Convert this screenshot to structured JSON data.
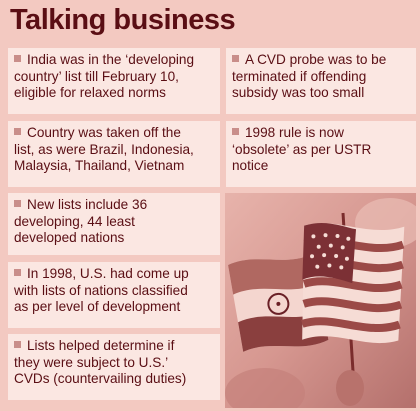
{
  "title": "Talking business",
  "left_items": [
    {
      "lines": [
        "India was in the ‘developing",
        "country’ list till February 10,",
        "eligible for relaxed norms"
      ]
    },
    {
      "lines": [
        "Country was taken off the",
        "list, as were Brazil, Indonesia,",
        "Malaysia, Thailand, Vietnam"
      ]
    },
    {
      "lines": [
        "New lists include 36",
        "developing, 44 least",
        "developed nations"
      ]
    },
    {
      "lines": [
        "In 1998, U.S. had come up",
        "with lists of nations classified",
        "as per level of development"
      ]
    },
    {
      "lines": [
        "Lists helped determine if",
        "they were subject to U.S.’",
        "CVDs (countervailing duties)"
      ]
    }
  ],
  "right_items": [
    {
      "lines": [
        "A CVD probe was to be",
        "terminated if offending",
        "subsidy was too small"
      ]
    },
    {
      "lines": [
        "1998 rule is now",
        "‘obsolete’ as per USTR",
        "notice"
      ]
    }
  ],
  "photo": {
    "subject": "flags-icon"
  },
  "colors": {
    "background": "#f3c9c1",
    "card": "#fbe7e2",
    "text": "#5a0e14",
    "bullet": "#c98e8a"
  }
}
